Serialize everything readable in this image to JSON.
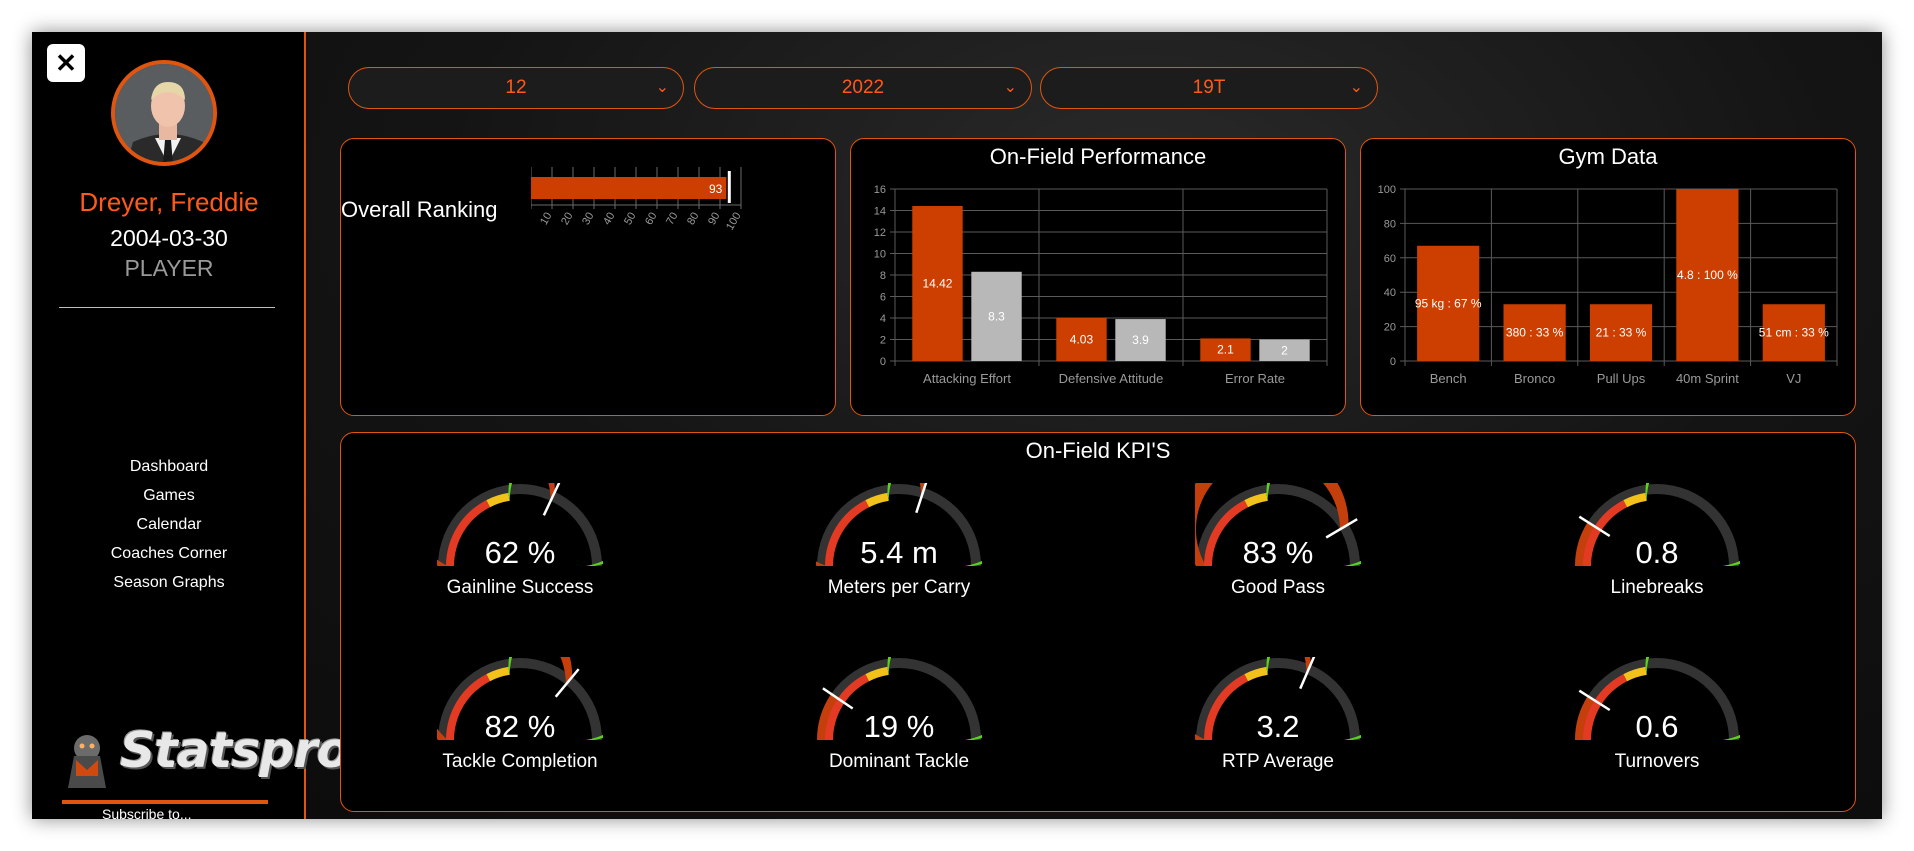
{
  "player": {
    "name": "Dreyer, Freddie",
    "dob": "2004-03-30",
    "role": "PLAYER"
  },
  "close_label": "✕",
  "nav": [
    "Dashboard",
    "Games",
    "Calendar",
    "Coaches Corner",
    "Season Graphs"
  ],
  "logo": {
    "text": "Statspro",
    "subtext": "Subscribe to..."
  },
  "filters": [
    {
      "value": "12"
    },
    {
      "value": "2022"
    },
    {
      "value": "19T"
    }
  ],
  "colors": {
    "accent": "#e0550f",
    "bar_primary": "#cc3f00",
    "bar_secondary": "#b8b8b8"
  },
  "overall": {
    "label": "Overall Ranking",
    "chart_data": {
      "type": "bar",
      "orientation": "horizontal",
      "values": [
        93
      ],
      "xlim": [
        0,
        100
      ],
      "ticks": [
        0,
        10,
        20,
        30,
        40,
        50,
        60,
        70,
        80,
        90,
        100
      ]
    }
  },
  "onfield": {
    "title": "On-Field Performance",
    "chart_data": {
      "type": "bar",
      "categories": [
        "Attacking Effort",
        "Defensive Attitude",
        "Error Rate"
      ],
      "series": [
        {
          "values": [
            14.42,
            4.03,
            2.1
          ]
        },
        {
          "values": [
            8.3,
            3.9,
            2
          ]
        }
      ],
      "ylim": [
        0,
        16
      ],
      "yticks": [
        0,
        2,
        4,
        6,
        8,
        10,
        12,
        14,
        16
      ]
    }
  },
  "gym": {
    "title": "Gym Data",
    "chart_data": {
      "type": "bar",
      "categories": [
        "Bench",
        "Bronco",
        "Pull Ups",
        "40m Sprint",
        "VJ"
      ],
      "values": [
        67,
        33,
        33,
        100,
        33
      ],
      "labels": [
        "95 kg : 67 %",
        "380 : 33 %",
        "21 : 33 %",
        "4.8 : 100 %",
        "51 cm : 33 %"
      ],
      "ylim": [
        0,
        100
      ],
      "yticks": [
        0,
        20,
        40,
        60,
        80,
        100
      ]
    }
  },
  "kpi": {
    "title": "On-Field KPI'S",
    "gauges": [
      {
        "label": "Gainline Success",
        "value": "62 %",
        "level": 0.64
      },
      {
        "label": "Meters per Carry",
        "value": "5.4 m",
        "level": 0.6
      },
      {
        "label": "Good Pass",
        "value": "83 %",
        "level": 0.83
      },
      {
        "label": "Linebreaks",
        "value": "0.8",
        "level": 0.18
      },
      {
        "label": "Tackle Completion",
        "value": "82 %",
        "level": 0.72
      },
      {
        "label": "Dominant Tackle",
        "value": "19 %",
        "level": 0.19
      },
      {
        "label": "RTP Average",
        "value": "3.2",
        "level": 0.63
      },
      {
        "label": "Turnovers",
        "value": "0.6",
        "level": 0.18
      }
    ]
  }
}
